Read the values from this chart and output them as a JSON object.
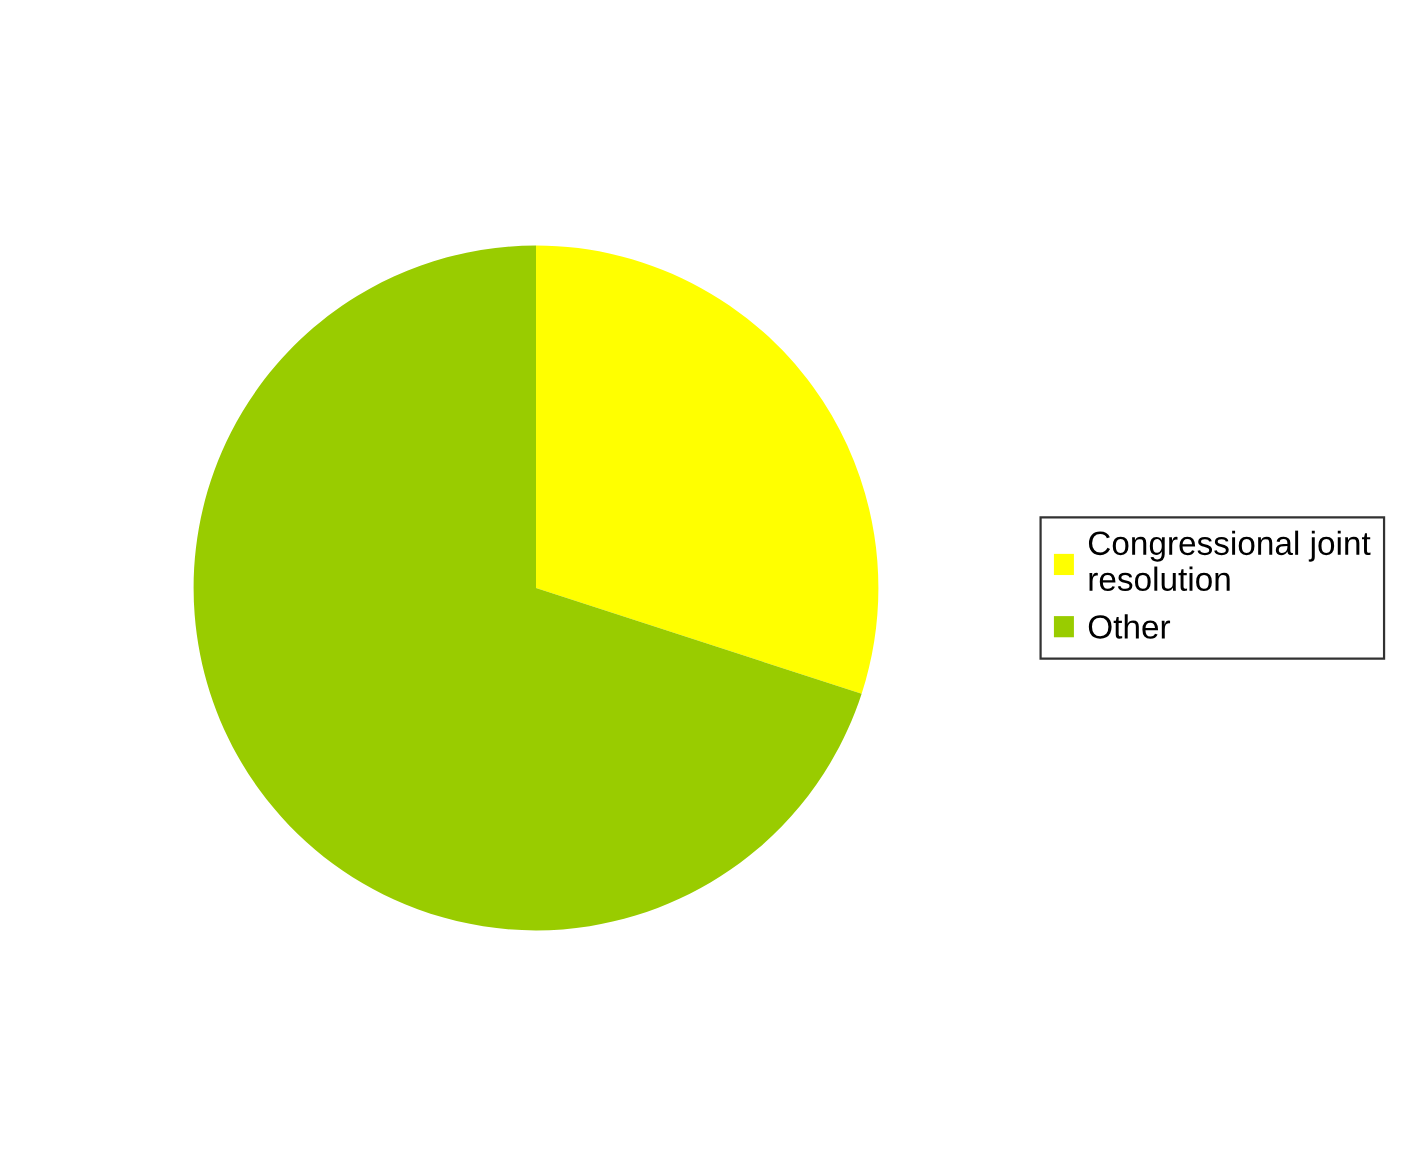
{
  "chart_data": {
    "type": "pie",
    "categories": [
      "Congressional joint\nresolution",
      "Other"
    ],
    "values": [
      30,
      70
    ],
    "colors": [
      "#ffff00",
      "#99cc00"
    ],
    "legend": "right"
  }
}
